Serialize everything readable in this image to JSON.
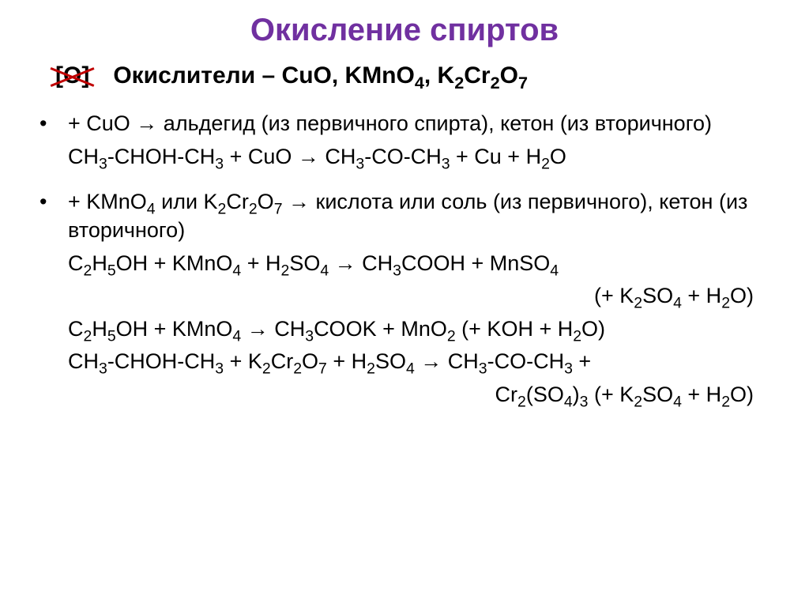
{
  "title": {
    "text": "Окисление спиртов",
    "color": "#7030a0"
  },
  "subhead": {
    "crossed": "[O]",
    "crossed_color": "#c00000",
    "text_html": "Окислители – CuO, KMnO<sub>4</sub>, K<sub>2</sub>Cr<sub>2</sub>O<sub>7</sub>"
  },
  "bullets": [
    {
      "lead_html": "+ CuO <span class=\"arrow\">→</span> альдегид (из первичного спирта), кетон (из вторичного)",
      "lines": [
        {
          "html": "CH<sub>3</sub>-CHOH-CH<sub>3</sub> + CuO <span class=\"arrow\">→</span> CH<sub>3</sub>-CO-CH<sub>3</sub> + Cu + H<sub>2</sub>O",
          "align": "left"
        }
      ]
    },
    {
      "lead_html": "+ KMnO<sub>4</sub> или K<sub>2</sub>Cr<sub>2</sub>O<sub>7</sub> <span class=\"arrow\">→</span> кислота или соль (из первичного), кетон (из вторичного)",
      "lines": [
        {
          "html": "C<sub>2</sub>H<sub>5</sub>OH + KMnO<sub>4</sub> + H<sub>2</sub>SO<sub>4</sub> <span class=\"arrow\">→</span> CH<sub>3</sub>COOH + MnSO<sub>4</sub>",
          "align": "left"
        },
        {
          "html": "(+ K<sub>2</sub>SO<sub>4</sub> + H<sub>2</sub>O)",
          "align": "right"
        },
        {
          "html": "C<sub>2</sub>H<sub>5</sub>OH + KMnO<sub>4</sub> <span class=\"arrow\">→</span> CH<sub>3</sub>COOK + MnO<sub>2</sub> (+ KOH + H<sub>2</sub>O)",
          "align": "left"
        },
        {
          "html": "CH<sub>3</sub>-CHOH-CH<sub>3</sub> + K<sub>2</sub>Cr<sub>2</sub>O<sub>7</sub> + H<sub>2</sub>SO<sub>4</sub> <span class=\"arrow\">→</span> CH<sub>3</sub>-CO-CH<sub>3</sub> +",
          "align": "left"
        },
        {
          "html": "Cr<sub>2</sub>(SO<sub>4</sub>)<sub>3</sub> (+ K<sub>2</sub>SO<sub>4</sub> + H<sub>2</sub>O)",
          "align": "right"
        }
      ]
    }
  ],
  "style": {
    "background": "#ffffff",
    "text_color": "#000000",
    "title_fontsize": 40,
    "body_fontsize": 27,
    "subhead_fontsize": 30
  }
}
